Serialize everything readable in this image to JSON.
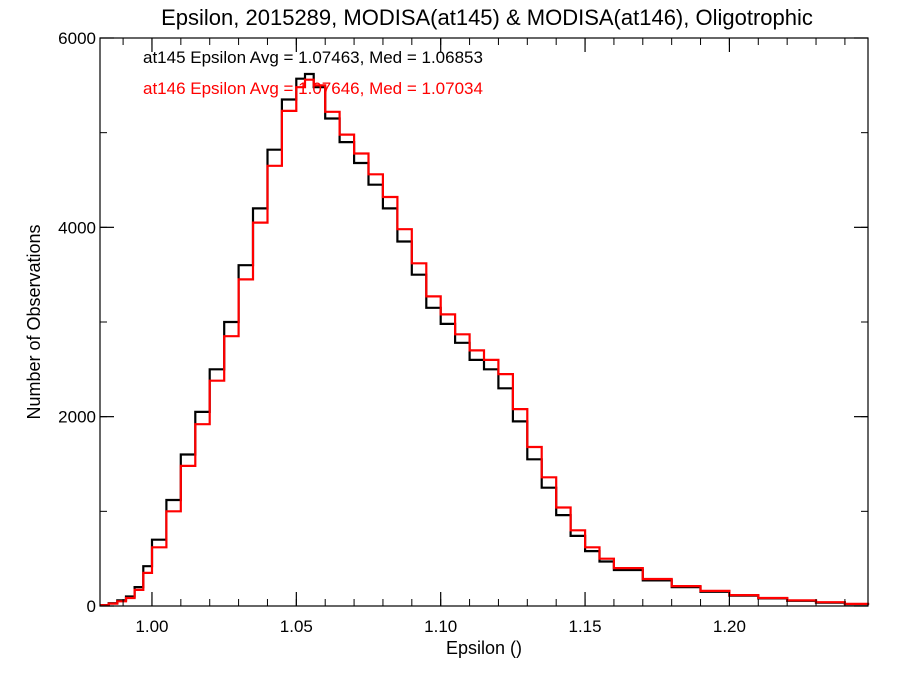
{
  "chart_data": {
    "type": "line",
    "title": "Epsilon, 2015289, MODISA(at145) & MODISA(at146), Oligotrophic",
    "xlabel": "Epsilon ()",
    "ylabel": "Number of Observations",
    "xlim": [
      0.982,
      1.248
    ],
    "ylim": [
      0,
      6000
    ],
    "x_ticks": [
      {
        "value": 1.0,
        "label": "1.00"
      },
      {
        "value": 1.05,
        "label": "1.05"
      },
      {
        "value": 1.1,
        "label": "1.10"
      },
      {
        "value": 1.15,
        "label": "1.15"
      },
      {
        "value": 1.2,
        "label": "1.20"
      }
    ],
    "x_minor_step": 0.01,
    "y_ticks": [
      {
        "value": 0,
        "label": "0"
      },
      {
        "value": 2000,
        "label": "2000"
      },
      {
        "value": 4000,
        "label": "4000"
      },
      {
        "value": 6000,
        "label": "6000"
      }
    ],
    "y_minor_step": 1000,
    "grid": false,
    "annotations": [
      {
        "text": "at145 Epsilon Avg = 1.07463, Med = 1.06853",
        "color": "#000000"
      },
      {
        "text": "at146 Epsilon Avg = 1.07646, Med = 1.07034",
        "color": "#ff0000"
      }
    ],
    "series": [
      {
        "color": "#000000",
        "x": [
          0.982,
          0.985,
          0.988,
          0.991,
          0.994,
          0.997,
          1.0,
          1.005,
          1.01,
          1.015,
          1.02,
          1.025,
          1.03,
          1.035,
          1.04,
          1.045,
          1.05,
          1.053,
          1.056,
          1.06,
          1.065,
          1.07,
          1.075,
          1.08,
          1.085,
          1.09,
          1.095,
          1.1,
          1.105,
          1.11,
          1.115,
          1.12,
          1.125,
          1.13,
          1.135,
          1.14,
          1.145,
          1.15,
          1.155,
          1.16,
          1.17,
          1.18,
          1.19,
          1.2,
          1.21,
          1.22,
          1.23,
          1.24,
          1.248
        ],
        "y": [
          10,
          30,
          60,
          100,
          200,
          420,
          700,
          1120,
          1600,
          2050,
          2500,
          3000,
          3600,
          4200,
          4820,
          5350,
          5570,
          5620,
          5480,
          5150,
          4900,
          4680,
          4450,
          4200,
          3850,
          3500,
          3150,
          2980,
          2780,
          2600,
          2500,
          2300,
          1950,
          1550,
          1250,
          960,
          740,
          580,
          470,
          380,
          270,
          200,
          150,
          110,
          80,
          55,
          35,
          20,
          10
        ]
      },
      {
        "color": "#ff0000",
        "x": [
          0.982,
          0.985,
          0.988,
          0.991,
          0.994,
          0.997,
          1.0,
          1.005,
          1.01,
          1.015,
          1.02,
          1.025,
          1.03,
          1.035,
          1.04,
          1.045,
          1.05,
          1.053,
          1.056,
          1.06,
          1.065,
          1.07,
          1.075,
          1.08,
          1.085,
          1.09,
          1.095,
          1.1,
          1.105,
          1.11,
          1.115,
          1.12,
          1.125,
          1.13,
          1.135,
          1.14,
          1.145,
          1.15,
          1.155,
          1.16,
          1.17,
          1.18,
          1.19,
          1.2,
          1.21,
          1.22,
          1.23,
          1.24,
          1.248
        ],
        "y": [
          8,
          25,
          50,
          85,
          170,
          350,
          620,
          1000,
          1480,
          1920,
          2380,
          2850,
          3450,
          4050,
          4650,
          5230,
          5480,
          5560,
          5500,
          5220,
          4980,
          4780,
          4560,
          4320,
          3980,
          3620,
          3270,
          3080,
          2870,
          2700,
          2600,
          2450,
          2080,
          1680,
          1360,
          1040,
          800,
          620,
          500,
          400,
          285,
          210,
          160,
          115,
          85,
          60,
          40,
          22,
          12
        ]
      }
    ]
  }
}
